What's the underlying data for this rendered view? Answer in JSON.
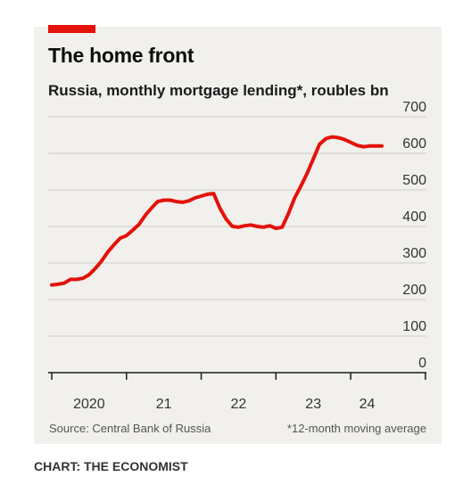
{
  "accent_color": "#e3120b",
  "chart_data": {
    "type": "line",
    "title": "The home front",
    "subtitle": "Russia, monthly mortgage lending*, roubles bn",
    "xlabel": "",
    "ylabel": "",
    "ylim": [
      0,
      700
    ],
    "yticks": [
      0,
      100,
      200,
      300,
      400,
      500,
      600,
      700
    ],
    "ytick_labels": [
      "0",
      "100",
      "200",
      "300",
      "400",
      "500",
      "600",
      "700"
    ],
    "xlim": [
      "2020-01",
      "2024-06"
    ],
    "xticks": [
      "2020-01",
      "2021-01",
      "2022-01",
      "2023-01",
      "2024-01"
    ],
    "xtick_labels": [
      "2020",
      "21",
      "22",
      "23",
      "24"
    ],
    "grid": "horizontal",
    "line_color": "#e3120b",
    "series": [
      {
        "x": [
          "2020-01",
          "2020-02",
          "2020-03",
          "2020-04",
          "2020-05",
          "2020-06",
          "2020-07",
          "2020-08",
          "2020-09",
          "2020-10",
          "2020-11",
          "2020-12",
          "2021-01",
          "2021-02",
          "2021-03",
          "2021-04",
          "2021-05",
          "2021-06",
          "2021-07",
          "2021-08",
          "2021-09",
          "2021-10",
          "2021-11",
          "2021-12",
          "2022-01",
          "2022-02",
          "2022-03",
          "2022-04",
          "2022-05",
          "2022-06",
          "2022-07",
          "2022-08",
          "2022-09",
          "2022-10",
          "2022-11",
          "2022-12",
          "2023-01",
          "2023-02",
          "2023-03",
          "2023-04",
          "2023-05",
          "2023-06",
          "2023-07",
          "2023-08",
          "2023-09",
          "2023-10",
          "2023-11",
          "2023-12",
          "2024-01",
          "2024-02",
          "2024-03",
          "2024-04",
          "2024-05",
          "2024-06"
        ],
        "values": [
          240,
          242,
          245,
          255,
          255,
          258,
          268,
          285,
          305,
          330,
          350,
          368,
          375,
          390,
          405,
          430,
          450,
          468,
          472,
          472,
          468,
          466,
          470,
          478,
          483,
          488,
          490,
          450,
          420,
          400,
          398,
          402,
          404,
          400,
          398,
          402,
          395,
          398,
          435,
          478,
          510,
          545,
          585,
          625,
          640,
          645,
          643,
          638,
          630,
          622,
          618,
          620,
          620,
          620
        ]
      }
    ]
  },
  "footer": {
    "source": "Source: Central Bank of Russia",
    "footnote": "*12-month moving average",
    "credit": "CHART: THE ECONOMIST"
  }
}
